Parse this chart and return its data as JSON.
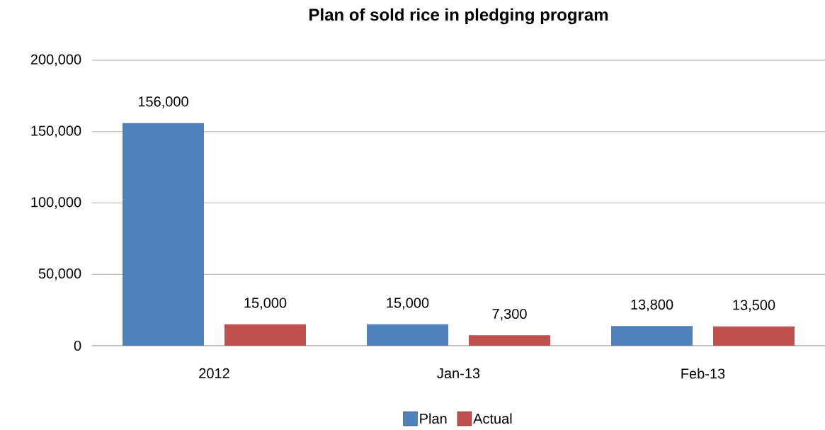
{
  "chart_data": {
    "type": "bar",
    "title": "Plan of sold rice in pledging program",
    "categories": [
      "2012",
      "Jan-13",
      "Feb-13"
    ],
    "series": [
      {
        "name": "Plan",
        "color": "#4f81bd",
        "values": [
          156000,
          15000,
          13800
        ],
        "value_labels": [
          "156,000",
          "15,000",
          "13,800"
        ]
      },
      {
        "name": "Actual",
        "color": "#c0504d",
        "values": [
          15000,
          7300,
          13500
        ],
        "value_labels": [
          "15,000",
          "7,300",
          "13,500"
        ]
      }
    ],
    "ylim": [
      0,
      200000
    ],
    "yticks": [
      {
        "value": 0,
        "label": "0"
      },
      {
        "value": 50000,
        "label": "50,000"
      },
      {
        "value": 100000,
        "label": "100,000"
      },
      {
        "value": 150000,
        "label": "150,000"
      },
      {
        "value": 200000,
        "label": "200,000"
      }
    ],
    "grid": "y",
    "legend": "bottom"
  }
}
